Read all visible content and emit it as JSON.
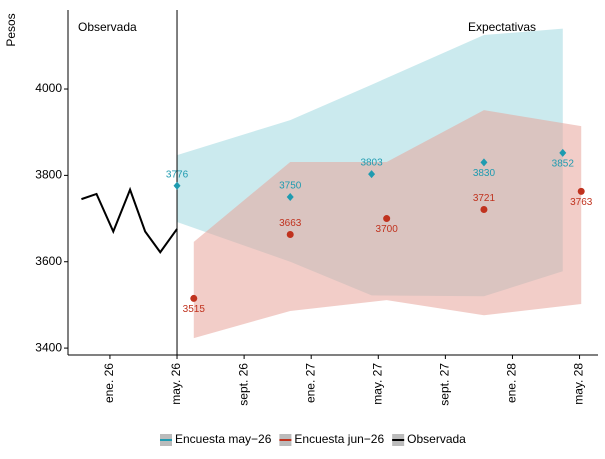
{
  "chart_data": {
    "type": "line",
    "y_label": "Pesos",
    "annotations": [
      "Observada",
      "Expectativas"
    ],
    "xlim": [
      -2.5,
      29.1
    ],
    "xticks": [
      {
        "value": 0,
        "label": "ene. 26"
      },
      {
        "value": 4,
        "label": "may. 26"
      },
      {
        "value": 8,
        "label": "sept. 26"
      },
      {
        "value": 12,
        "label": "ene. 27"
      },
      {
        "value": 16,
        "label": "may. 27"
      },
      {
        "value": 20,
        "label": "sept. 27"
      },
      {
        "value": 24,
        "label": "ene. 28"
      },
      {
        "value": 28,
        "label": "may. 28"
      }
    ],
    "ylim": [
      3384,
      4183
    ],
    "yticks": [
      3400,
      3600,
      3800,
      4000
    ],
    "grid": false,
    "legend": "bottom",
    "series": [
      {
        "name": "Encuesta may−26",
        "color": "#1f9bb0",
        "band_color": "#a8dce3",
        "x": [
          4.0,
          10.75,
          15.6,
          22.3,
          27.0
        ],
        "values": [
          3776,
          3750,
          3803,
          3830,
          3852
        ],
        "lower": [
          3692,
          3600,
          3522,
          3520,
          3578
        ],
        "upper": [
          3847,
          3928,
          4010,
          4125,
          4140
        ]
      },
      {
        "name": "Encuesta jun−26",
        "color": "#c0321e",
        "band_color": "#e8a49a",
        "x": [
          5.0,
          10.75,
          16.5,
          22.3,
          28.1
        ],
        "values": [
          3515,
          3663,
          3700,
          3721,
          3763
        ],
        "lower": [
          3423,
          3486,
          3511,
          3476,
          3502
        ],
        "upper": [
          3646,
          3831,
          3831,
          3951,
          3914
        ]
      },
      {
        "name": "Observada",
        "color": "#000000",
        "x": [
          -1.7,
          -0.8,
          0.2,
          1.2,
          2.1,
          3.0,
          4.0
        ],
        "values": [
          3745,
          3757,
          3670,
          3767,
          3670,
          3622,
          3676
        ]
      }
    ]
  }
}
